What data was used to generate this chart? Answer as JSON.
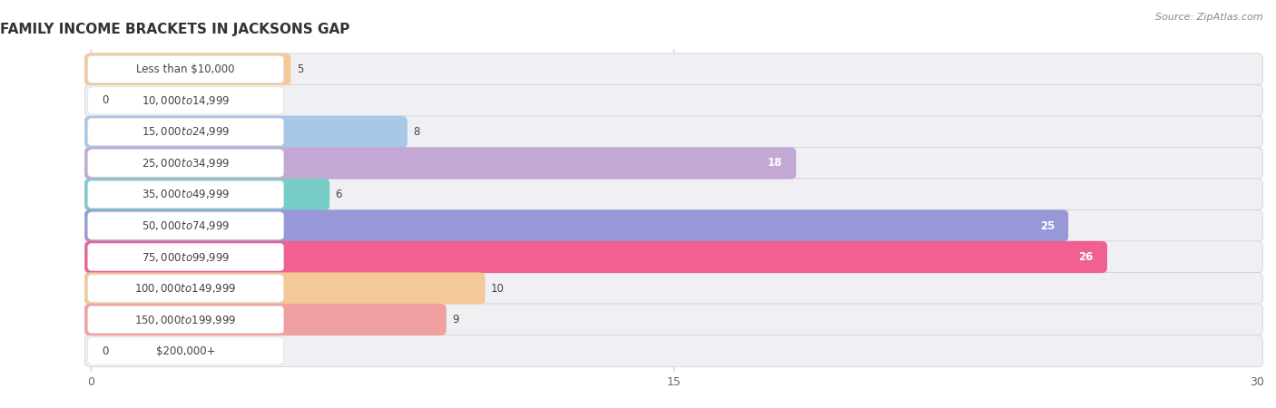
{
  "title": "FAMILY INCOME BRACKETS IN JACKSONS GAP",
  "source": "Source: ZipAtlas.com",
  "categories": [
    "Less than $10,000",
    "$10,000 to $14,999",
    "$15,000 to $24,999",
    "$25,000 to $34,999",
    "$35,000 to $49,999",
    "$50,000 to $74,999",
    "$75,000 to $99,999",
    "$100,000 to $149,999",
    "$150,000 to $199,999",
    "$200,000+"
  ],
  "values": [
    5,
    0,
    8,
    18,
    6,
    25,
    26,
    10,
    9,
    0
  ],
  "bar_colors": [
    "#f5c89a",
    "#f0a0a0",
    "#a8c8e8",
    "#c4a8d4",
    "#78ccc8",
    "#9898d8",
    "#f06090",
    "#f5c89a",
    "#f0a0a0",
    "#b8d0f0"
  ],
  "xlim": [
    -2,
    30
  ],
  "xticks": [
    0,
    15,
    30
  ],
  "bg_color": "#ffffff",
  "row_bg_color": "#f0f0f4",
  "title_fontsize": 11,
  "label_fontsize": 8.5,
  "value_fontsize": 8.5,
  "value_inside_threshold": 18
}
